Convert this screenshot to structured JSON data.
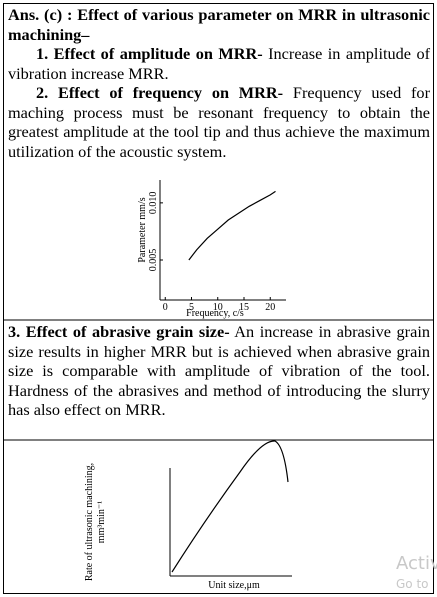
{
  "document": {
    "title": "Ans. (c) : Effect of various parameter on MRR in ultrasonic machining–",
    "sections": [
      {
        "heading": "1. Effect of amplitude on MRR-",
        "text": " Increase in amplitude of vibration increase MRR."
      },
      {
        "heading": "2. Effect of frequency on MRR-",
        "text": " Frequency used for maching process must be resonant frequency to obtain the greatest amplitude at the tool tip and thus achieve the maximum utilization of the acoustic system."
      },
      {
        "heading": "3. Effect of abrasive grain size-",
        "text": " An increase in abrasive grain size results in higher MRR but is achieved when abrasive grain size is comparable with amplitude of vibration of the tool. Hardness of the abrasives and method of introducing the slurry has also effect on MRR."
      }
    ],
    "watermark": [
      "Activ",
      "Go to"
    ]
  },
  "chart_data": [
    {
      "type": "line",
      "x_label": "Frequency, c/s",
      "y_label": "Parameter mm/s",
      "x": [
        4.5,
        6,
        8,
        10,
        12,
        14,
        16,
        18,
        20,
        21
      ],
      "values": [
        0.005,
        0.0059,
        0.0069,
        0.0077,
        0.0085,
        0.0091,
        0.0097,
        0.0102,
        0.0107,
        0.011
      ],
      "color": "#000000",
      "xlim": [
        -1,
        23
      ],
      "xticks": [
        0,
        5,
        10,
        15,
        20
      ],
      "ylim": [
        0.0015,
        0.012
      ],
      "yticks": [
        0.005,
        {
          "value": 0.01,
          "label": "0.010"
        }
      ]
    },
    {
      "type": "line",
      "x_label": "Unit size,μm",
      "y_label": "Rate of ultrasonic machining, mm³min⁻¹"
    }
  ]
}
